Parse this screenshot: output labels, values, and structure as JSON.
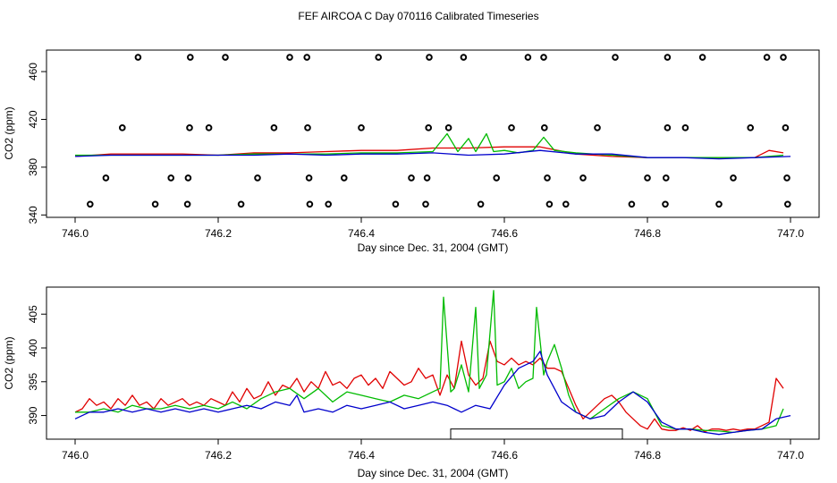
{
  "title": "FEF AIRCOA C  Day 070116  Calibrated Timeseries",
  "colors": {
    "series_1": "#e00000",
    "series_2": "#00bb00",
    "series_3": "#0000cc"
  },
  "chart_data": [
    {
      "id": "top",
      "type": "line",
      "xlabel": "Day since Dec. 31, 2004 (GMT)",
      "ylabel": "CO2 (ppm)",
      "xlim": [
        745.96,
        747.04
      ],
      "ylim": [
        338,
        478
      ],
      "xticks": [
        746.0,
        746.2,
        746.4,
        746.6,
        746.8,
        747.0
      ],
      "xtick_labels": [
        "746.0",
        "746.2",
        "746.4",
        "746.6",
        "746.8",
        "747.0"
      ],
      "yticks": [
        340,
        380,
        420,
        460
      ],
      "ytick_labels": [
        "340",
        "380",
        "420",
        "460"
      ],
      "flags": [
        {
          "level": 472,
          "x": [
            746.088,
            746.161,
            746.21,
            746.3,
            746.324,
            746.424,
            746.495,
            746.543,
            746.633,
            746.655,
            746.755,
            746.828,
            746.877,
            746.967,
            746.99
          ]
        },
        {
          "level": 413,
          "x": [
            746.066,
            746.16,
            746.187,
            746.278,
            746.325,
            746.4,
            746.494,
            746.522,
            746.61,
            746.656,
            746.73,
            746.828,
            746.853,
            746.944,
            746.993
          ]
        },
        {
          "level": 371,
          "x": [
            746.043,
            746.134,
            746.158,
            746.255,
            746.327,
            746.376,
            746.47,
            746.492,
            746.589,
            746.66,
            746.71,
            746.8,
            746.826,
            746.92,
            746.995
          ]
        },
        {
          "level": 349,
          "x": [
            746.021,
            746.112,
            746.157,
            746.232,
            746.328,
            746.354,
            746.448,
            746.49,
            746.567,
            746.663,
            746.686,
            746.778,
            746.825,
            746.9,
            746.996
          ]
        }
      ],
      "series": [
        {
          "name": "series_1",
          "color": "#e00000",
          "x": [
            746.0,
            746.05,
            746.1,
            746.15,
            746.2,
            746.25,
            746.3,
            746.35,
            746.4,
            746.45,
            746.5,
            746.55,
            746.6,
            746.65,
            746.7,
            746.75,
            746.8,
            746.85,
            746.9,
            746.95,
            746.97,
            746.99
          ],
          "values": [
            389,
            391,
            391,
            391,
            390,
            392,
            392,
            393,
            394,
            394,
            396,
            396,
            397,
            397,
            391,
            389,
            388,
            388,
            388,
            388,
            394,
            392
          ]
        },
        {
          "name": "series_2",
          "color": "#00bb00",
          "x": [
            746.0,
            746.05,
            746.1,
            746.15,
            746.2,
            746.25,
            746.3,
            746.35,
            746.4,
            746.45,
            746.5,
            746.52,
            746.535,
            746.55,
            746.56,
            746.575,
            746.585,
            746.6,
            746.62,
            746.64,
            746.655,
            746.67,
            746.7,
            746.75,
            746.8,
            746.85,
            746.9,
            746.95,
            746.99
          ],
          "values": [
            390,
            390,
            390,
            390,
            390,
            391,
            391,
            391,
            392,
            392,
            393,
            408,
            393,
            404,
            393,
            408,
            393,
            394,
            392,
            394,
            405,
            394,
            392,
            390,
            388,
            388,
            388,
            388,
            390
          ]
        },
        {
          "name": "series_3",
          "color": "#0000cc",
          "x": [
            746.0,
            746.05,
            746.1,
            746.15,
            746.2,
            746.25,
            746.3,
            746.35,
            746.4,
            746.45,
            746.5,
            746.55,
            746.6,
            746.65,
            746.7,
            746.75,
            746.8,
            746.85,
            746.9,
            746.95,
            747.0
          ],
          "values": [
            389,
            390,
            390,
            390,
            390,
            390,
            391,
            390,
            391,
            391,
            392,
            390,
            391,
            394,
            391,
            391,
            388,
            388,
            387,
            388,
            389
          ]
        }
      ]
    },
    {
      "id": "bottom",
      "type": "line",
      "xlabel": "Day since Dec. 31, 2004 (GMT)",
      "ylabel": "CO2 (ppm)",
      "xlim": [
        745.96,
        747.04
      ],
      "ylim": [
        386.5,
        409
      ],
      "xticks": [
        746.0,
        746.2,
        746.4,
        746.6,
        746.8,
        747.0
      ],
      "xtick_labels": [
        "746.0",
        "746.2",
        "746.4",
        "746.6",
        "746.8",
        "747.0"
      ],
      "yticks": [
        390,
        395,
        400,
        405
      ],
      "ytick_labels": [
        "390",
        "395",
        "400",
        "405"
      ],
      "bracket": {
        "x_start": 746.525,
        "x_end": 746.765,
        "y_level": 388
      },
      "series": [
        {
          "name": "series_1",
          "color": "#e00000",
          "x": [
            746.0,
            746.01,
            746.02,
            746.03,
            746.04,
            746.05,
            746.06,
            746.07,
            746.08,
            746.09,
            746.1,
            746.11,
            746.12,
            746.13,
            746.14,
            746.15,
            746.16,
            746.17,
            746.18,
            746.19,
            746.2,
            746.21,
            746.22,
            746.23,
            746.24,
            746.25,
            746.26,
            746.27,
            746.28,
            746.29,
            746.3,
            746.31,
            746.32,
            746.33,
            746.34,
            746.35,
            746.36,
            746.37,
            746.38,
            746.39,
            746.4,
            746.41,
            746.42,
            746.43,
            746.44,
            746.45,
            746.46,
            746.47,
            746.48,
            746.49,
            746.5,
            746.51,
            746.52,
            746.53,
            746.54,
            746.55,
            746.56,
            746.57,
            746.58,
            746.59,
            746.6,
            746.61,
            746.62,
            746.63,
            746.64,
            746.65,
            746.66,
            746.67,
            746.68,
            746.69,
            746.7,
            746.71,
            746.72,
            746.73,
            746.74,
            746.75,
            746.76,
            746.77,
            746.78,
            746.79,
            746.8,
            746.81,
            746.82,
            746.83,
            746.84,
            746.85,
            746.86,
            746.87,
            746.88,
            746.89,
            746.9,
            746.91,
            746.92,
            746.93,
            746.94,
            746.95,
            746.96,
            746.97,
            746.98,
            746.99
          ],
          "values": [
            390.5,
            391.0,
            392.5,
            391.5,
            392.0,
            391.0,
            392.5,
            391.5,
            393.0,
            391.5,
            392.0,
            391.0,
            392.5,
            391.5,
            392.0,
            392.5,
            391.5,
            392.0,
            391.5,
            392.5,
            392.0,
            391.5,
            393.5,
            392.0,
            394.0,
            392.5,
            393.0,
            395.0,
            393.0,
            394.5,
            394.0,
            395.5,
            393.5,
            395.0,
            394.0,
            396.5,
            394.5,
            395.0,
            394.0,
            395.5,
            396.0,
            394.5,
            395.5,
            394.0,
            396.5,
            395.5,
            394.5,
            395.0,
            397.0,
            395.5,
            396.0,
            393.0,
            396.0,
            394.0,
            401.0,
            396.0,
            394.5,
            395.5,
            401.0,
            398.0,
            397.5,
            398.5,
            397.5,
            398.0,
            397.5,
            398.5,
            397.0,
            397.0,
            396.5,
            394.0,
            391.5,
            389.5,
            390.5,
            391.5,
            392.5,
            393.0,
            392.0,
            390.5,
            389.5,
            388.5,
            388.0,
            389.5,
            388.0,
            387.8,
            387.8,
            388.2,
            387.8,
            388.5,
            387.6,
            388.0,
            388.0,
            387.8,
            388.0,
            387.8,
            388.0,
            388.0,
            388.5,
            389.0,
            395.5,
            394.0
          ]
        },
        {
          "name": "series_2",
          "color": "#00bb00",
          "x": [
            746.0,
            746.02,
            746.04,
            746.06,
            746.08,
            746.1,
            746.12,
            746.14,
            746.16,
            746.18,
            746.2,
            746.22,
            746.24,
            746.26,
            746.28,
            746.3,
            746.32,
            746.34,
            746.36,
            746.38,
            746.4,
            746.42,
            746.44,
            746.46,
            746.48,
            746.5,
            746.51,
            746.515,
            746.525,
            746.53,
            746.54,
            746.55,
            746.56,
            746.565,
            746.575,
            746.585,
            746.59,
            746.6,
            746.61,
            746.62,
            746.63,
            746.64,
            746.645,
            746.655,
            746.66,
            746.67,
            746.68,
            746.69,
            746.7,
            746.72,
            746.74,
            746.76,
            746.78,
            746.8,
            746.82,
            746.84,
            746.86,
            746.88,
            746.9,
            746.92,
            746.94,
            746.96,
            746.98,
            746.99
          ],
          "values": [
            390.5,
            390.5,
            391.0,
            390.5,
            391.5,
            391.0,
            391.0,
            391.5,
            391.0,
            391.5,
            391.0,
            392.0,
            391.0,
            392.5,
            393.5,
            394.0,
            392.5,
            394.0,
            392.0,
            393.5,
            393.0,
            392.5,
            392.0,
            393.0,
            392.5,
            393.5,
            394.0,
            407.5,
            393.5,
            394.0,
            397.5,
            393.5,
            406.0,
            394.0,
            396.0,
            408.5,
            394.5,
            395.0,
            397.0,
            394.0,
            395.0,
            395.5,
            406.0,
            396.0,
            398.0,
            400.5,
            397.0,
            393.0,
            390.5,
            389.5,
            391.0,
            392.5,
            393.5,
            392.5,
            388.5,
            388.0,
            388.0,
            387.8,
            387.7,
            387.5,
            387.8,
            388.0,
            388.5,
            391.0
          ]
        },
        {
          "name": "series_3",
          "color": "#0000cc",
          "x": [
            746.0,
            746.02,
            746.04,
            746.06,
            746.08,
            746.1,
            746.12,
            746.14,
            746.16,
            746.18,
            746.2,
            746.22,
            746.24,
            746.26,
            746.28,
            746.3,
            746.31,
            746.32,
            746.34,
            746.36,
            746.38,
            746.4,
            746.42,
            746.44,
            746.46,
            746.48,
            746.5,
            746.52,
            746.54,
            746.56,
            746.58,
            746.6,
            746.62,
            746.64,
            746.65,
            746.66,
            746.68,
            746.7,
            746.72,
            746.74,
            746.76,
            746.78,
            746.8,
            746.82,
            746.84,
            746.86,
            746.88,
            746.9,
            746.92,
            746.94,
            746.96,
            746.98,
            747.0
          ],
          "values": [
            389.5,
            390.5,
            390.5,
            391.0,
            390.5,
            391.0,
            390.5,
            391.0,
            390.5,
            391.0,
            390.5,
            391.0,
            391.5,
            391.0,
            392.0,
            391.5,
            393.0,
            390.5,
            391.0,
            390.5,
            391.5,
            391.0,
            391.5,
            392.0,
            391.0,
            391.5,
            392.0,
            391.5,
            390.5,
            391.5,
            391.0,
            394.5,
            397.0,
            398.0,
            399.5,
            396.0,
            392.0,
            390.5,
            389.5,
            390.0,
            392.0,
            393.5,
            392.0,
            389.0,
            388.0,
            388.0,
            387.5,
            387.2,
            387.5,
            387.8,
            388.0,
            389.5,
            390.0
          ]
        }
      ]
    }
  ]
}
